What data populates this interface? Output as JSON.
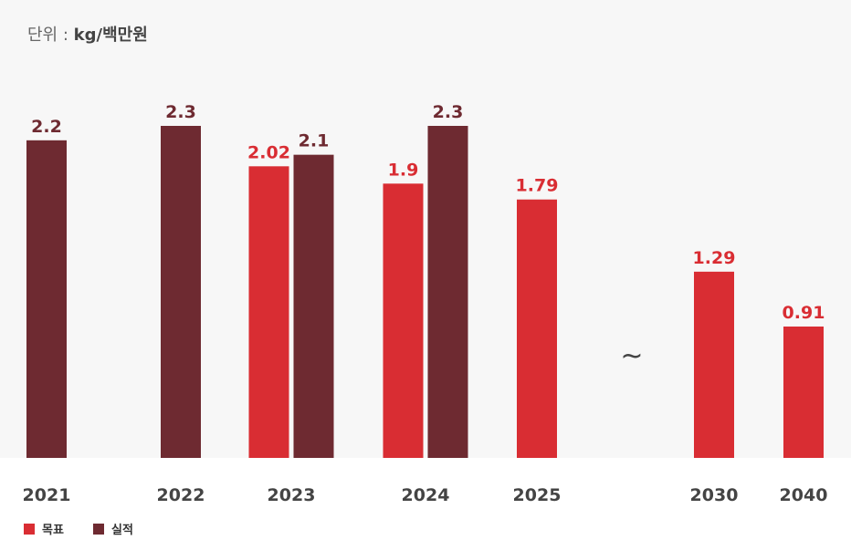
{
  "unit": {
    "prefix": "단위 : ",
    "value": "kg/백만원"
  },
  "legend": [
    {
      "name": "목표",
      "color": "#d92d33"
    },
    {
      "name": "실적",
      "color": "#6e2a31"
    }
  ],
  "break_symbol": "~",
  "chart_data": {
    "type": "bar",
    "categories": [
      "2021",
      "2022",
      "2023",
      "2024",
      "2025",
      "2030",
      "2040"
    ],
    "series": [
      {
        "name": "목표",
        "color": "#d92d33",
        "values": [
          null,
          null,
          2.02,
          1.9,
          1.79,
          1.29,
          0.91
        ],
        "labels": [
          "",
          "",
          "2.02",
          "1.9",
          "1.79",
          "1.29",
          "0.91"
        ]
      },
      {
        "name": "실적",
        "color": "#6e2a31",
        "values": [
          2.2,
          2.3,
          2.1,
          2.3,
          null,
          null,
          null
        ],
        "labels": [
          "2.2",
          "2.3",
          "2.1",
          "2.3",
          "",
          "",
          ""
        ]
      }
    ],
    "ylim": [
      0,
      2.3
    ],
    "axis_break_between": [
      "2025",
      "2030"
    ],
    "grid": false,
    "legend_position": "bottom-left"
  }
}
